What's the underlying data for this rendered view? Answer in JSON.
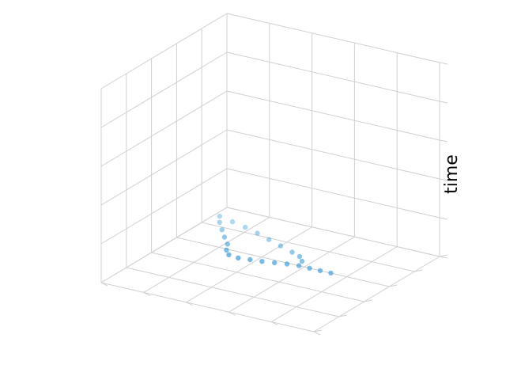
{
  "chart_data": {
    "type": "scatter",
    "projection": "3d",
    "title": "",
    "xlabel": "",
    "ylabel": "",
    "zlabel": "time",
    "tick_labels_visible": false,
    "grid": true,
    "pane_fill": "none",
    "colors": {
      "grid": "#d0d0d0",
      "marker": "#1a8fd8"
    },
    "series": [
      {
        "points": [
          {
            "x": -0.95,
            "y": 0.8,
            "z": 0
          },
          {
            "x": -0.8,
            "y": 0.75,
            "z": 0
          },
          {
            "x": -0.65,
            "y": 0.7,
            "z": 0
          },
          {
            "x": -0.5,
            "y": 0.64,
            "z": 0
          },
          {
            "x": -0.35,
            "y": 0.57,
            "z": 0
          },
          {
            "x": -0.2,
            "y": 0.5,
            "z": 0
          },
          {
            "x": -0.05,
            "y": 0.43,
            "z": 0
          },
          {
            "x": 0.05,
            "y": 0.38,
            "z": 0
          },
          {
            "x": 0.12,
            "y": 0.3,
            "z": 0
          },
          {
            "x": -0.88,
            "y": 0.68,
            "z": 0
          },
          {
            "x": -0.78,
            "y": 0.55,
            "z": 0
          },
          {
            "x": -0.68,
            "y": 0.42,
            "z": 0
          },
          {
            "x": -0.58,
            "y": 0.3,
            "z": 0
          },
          {
            "x": -0.52,
            "y": 0.18,
            "z": 0
          },
          {
            "x": -0.45,
            "y": 0.1,
            "z": 0
          },
          {
            "x": -0.35,
            "y": 0.08,
            "z": 0
          },
          {
            "x": -0.25,
            "y": 0.1,
            "z": 0
          },
          {
            "x": -0.15,
            "y": 0.12,
            "z": 0
          },
          {
            "x": -0.05,
            "y": 0.15,
            "z": 0
          },
          {
            "x": 0.05,
            "y": 0.18,
            "z": 0
          },
          {
            "x": 0.15,
            "y": 0.2,
            "z": 0
          },
          {
            "x": 0.25,
            "y": 0.2,
            "z": 0
          },
          {
            "x": 0.35,
            "y": 0.2,
            "z": 0
          },
          {
            "x": 0.45,
            "y": 0.2,
            "z": 0
          }
        ]
      }
    ]
  }
}
